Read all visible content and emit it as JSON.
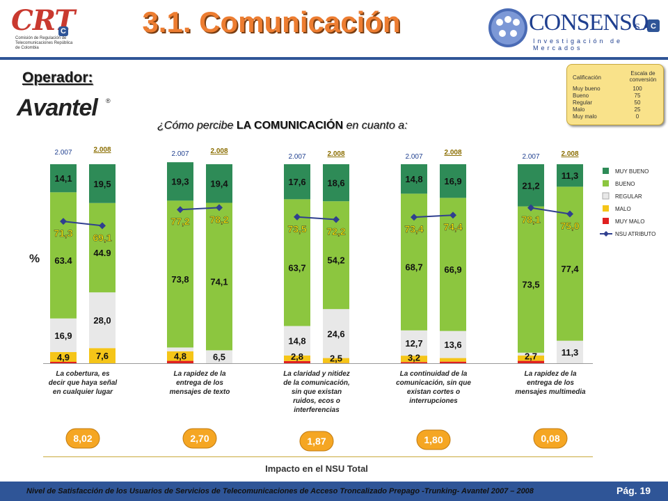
{
  "header": {
    "title": "3.1. Comunicación",
    "crt_logo": {
      "letters": "CRT",
      "badge": "C",
      "subtitle": "Comisión de Regulación de Telecomunicaciones República de Colombia"
    },
    "consenso_logo": {
      "name": "CONSENSO",
      "suffix": "S.A.",
      "tagline": "Investigación de Mercados"
    },
    "operator_label": "Operador:",
    "operator_name": "Avantel",
    "operator_mark": "®"
  },
  "question": {
    "prefix": "¿Cómo percibe ",
    "emphasis": "LA COMUNICACIÓN",
    "suffix": " en cuanto a:"
  },
  "calificacion": {
    "col1": "Calificación",
    "col2": "Escala de conversión",
    "rows": [
      {
        "label": "Muy bueno",
        "value": "100"
      },
      {
        "label": "Bueno",
        "value": "75"
      },
      {
        "label": "Regular",
        "value": "50"
      },
      {
        "label": "Malo",
        "value": "25"
      },
      {
        "label": "Muy malo",
        "value": "0"
      }
    ]
  },
  "colors": {
    "muy_bueno": "#2e8b57",
    "bueno": "#8cc63f",
    "regular": "#e8e8e8",
    "malo": "#f5c518",
    "muy_malo": "#e02020",
    "nsu": "#2f3f8f",
    "impact": "#f5a623",
    "brand_orange": "#ed7d31",
    "brand_blue": "#2f5597"
  },
  "chart_data": {
    "type": "bar",
    "subtype": "stacked-100",
    "ylabel": "%",
    "legend_position": "right",
    "legend": [
      "MUY BUENO",
      "BUENO",
      "REGULAR",
      "MALO",
      "MUY MALO",
      "NSU ATRIBUTO"
    ],
    "groups": [
      {
        "label": "La cobertura, es decir que haya señal en cualquier lugar",
        "impact": "8,02",
        "bars": [
          {
            "year": "2.007",
            "muy_bueno": 14.1,
            "bueno": 63.4,
            "regular": 16.9,
            "malo": 4.9,
            "muy_malo": 0.7,
            "nsu": 71.3,
            "labels": {
              "muy_bueno": "14,1",
              "bueno": "63.4",
              "regular": "16,9",
              "malo": "4,9",
              "nsu": "71,3"
            }
          },
          {
            "year": "2.008",
            "muy_bueno": 19.5,
            "bueno": 44.9,
            "regular": 28.0,
            "malo": 7.6,
            "muy_malo": 0.0,
            "nsu": 69.1,
            "labels": {
              "muy_bueno": "19,5",
              "bueno": "44.9",
              "regular": "28,0",
              "malo": "7,6",
              "nsu": "69,1"
            }
          }
        ]
      },
      {
        "label": "La rapidez de la entrega de los mensajes de texto",
        "impact": "2,70",
        "bars": [
          {
            "year": "2.007",
            "muy_bueno": 19.3,
            "bueno": 73.8,
            "regular": 1.9,
            "malo": 4.8,
            "muy_malo": 1.2,
            "nsu": 77.2,
            "labels": {
              "muy_bueno": "19,3",
              "bueno": "73,8",
              "malo": "4,8",
              "nsu": "77,2"
            }
          },
          {
            "year": "2.008",
            "muy_bueno": 19.4,
            "bueno": 74.1,
            "regular": 6.5,
            "malo": 0.0,
            "muy_malo": 0.0,
            "nsu": 78.2,
            "labels": {
              "muy_bueno": "19,4",
              "bueno": "74,1",
              "regular": "6,5",
              "nsu": "78,2"
            }
          }
        ]
      },
      {
        "label": "La claridad y nitidez de la comunicación, sin que existan ruidos, ecos o interferencias",
        "impact": "1,87",
        "bars": [
          {
            "year": "2.007",
            "muy_bueno": 17.6,
            "bueno": 63.7,
            "regular": 14.8,
            "malo": 2.8,
            "muy_malo": 1.1,
            "nsu": 73.5,
            "labels": {
              "muy_bueno": "17,6",
              "bueno": "63,7",
              "regular": "14,8",
              "malo": "2,8",
              "nsu": "73,5"
            }
          },
          {
            "year": "2.008",
            "muy_bueno": 18.6,
            "bueno": 54.2,
            "regular": 24.6,
            "malo": 2.5,
            "muy_malo": 0.1,
            "nsu": 72.2,
            "labels": {
              "muy_bueno": "18,6",
              "bueno": "54,2",
              "regular": "24,6",
              "malo": "2,5",
              "nsu": "72,2"
            }
          }
        ]
      },
      {
        "label": "La continuidad de la comunicación, sin que existan cortes o interrupciones",
        "impact": "1,80",
        "bars": [
          {
            "year": "2.007",
            "muy_bueno": 14.8,
            "bueno": 68.7,
            "regular": 12.7,
            "malo": 3.2,
            "muy_malo": 0.6,
            "nsu": 73.4,
            "labels": {
              "muy_bueno": "14,8",
              "bueno": "68,7",
              "regular": "12,7",
              "malo": "3,2",
              "nsu": "73,4"
            }
          },
          {
            "year": "2.008",
            "muy_bueno": 16.9,
            "bueno": 66.9,
            "regular": 13.6,
            "malo": 1.8,
            "muy_malo": 0.8,
            "nsu": 74.4,
            "labels": {
              "muy_bueno": "16,9",
              "bueno": "66,9",
              "regular": "13,6",
              "nsu": "74,4"
            }
          }
        ]
      },
      {
        "label": "La rapidez de la entrega de los mensajes multimedia",
        "impact": "0,08",
        "bars": [
          {
            "year": "2.007",
            "muy_bueno": 21.2,
            "bueno": 73.5,
            "regular": 1.4,
            "malo": 2.7,
            "muy_malo": 1.2,
            "nsu": 78.1,
            "labels": {
              "muy_bueno": "21,2",
              "bueno": "73,5",
              "malo": "2,7",
              "nsu": "78,1"
            }
          },
          {
            "year": "2.008",
            "muy_bueno": 11.3,
            "bueno": 77.4,
            "regular": 11.3,
            "malo": 0.0,
            "muy_malo": 0.0,
            "nsu": 75.0,
            "labels": {
              "muy_bueno": "11,3",
              "bueno": "77,4",
              "regular": "11,3",
              "nsu": "75,0"
            }
          }
        ]
      }
    ],
    "impact_title": "Impacto en el NSU Total"
  },
  "footer": {
    "text": "Nivel de Satisfacción de los Usuarios de Servicios de Telecomunicaciones de Acceso Troncalizado Prepago -Trunking- Avantel 2007 – 2008",
    "page": "Pág. 19"
  }
}
